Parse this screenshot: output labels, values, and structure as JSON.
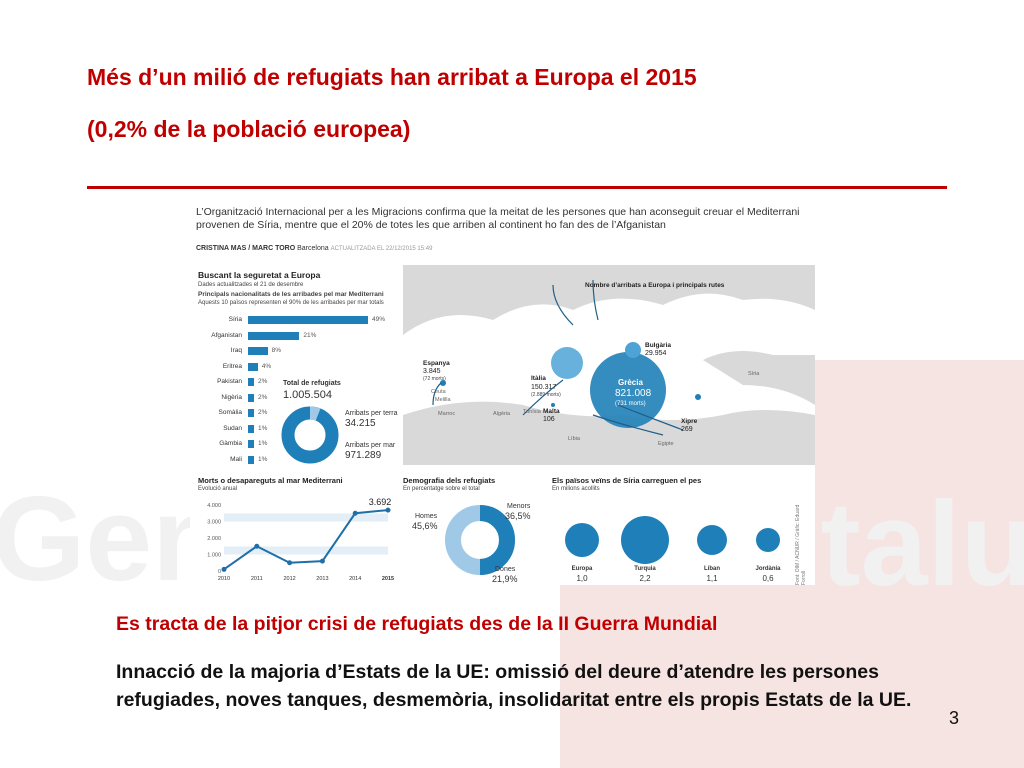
{
  "slide": {
    "title_line1": "Més d’un milió de refugiats han arribat a Europa el 2015",
    "title_line2": "(0,2% de la població europea)",
    "subtitle": "Es tracta de la pitjor crisi de refugiats des de la II Guerra Mundial",
    "paragraph": "Innacció de la majoria d’Estats de la UE: omissió del deure d’atendre les persones refugiades, noves tanques, desmemòria, insolidaritat entre els propis Estats de la UE.",
    "page_number": "3",
    "accent_color": "#c00000"
  },
  "infographic": {
    "headline": "L’Organització Internacional per a les Migracions confirma que la meitat de les persones que han aconseguit creuar el Mediterrani provenen de Síria, mentre que el 20% de totes les que arriben al continent ho fan des de l’Afganistan",
    "byline_authors": "CRISTINA MAS / MARC TORO",
    "byline_place": "Barcelona",
    "byline_updated": "ACTUALITZADA EL 22/12/2015 15:49",
    "section1_title": "Buscant la seguretat a Europa",
    "section1_note": "Dades actualitzades el 21 de desembre",
    "section1_subtitle": "Principals nacionalitats de les arribades pel mar Mediterrani",
    "section1_subnote": "Aquests 10 països representen el 90% de les arribades per mar totals",
    "nationalities": [
      {
        "name": "Síria",
        "pct": 49,
        "label": "49%"
      },
      {
        "name": "Afganistan",
        "pct": 21,
        "label": "21%"
      },
      {
        "name": "Iraq",
        "pct": 8,
        "label": "8%"
      },
      {
        "name": "Eritrea",
        "pct": 4,
        "label": "4%"
      },
      {
        "name": "Pakistan",
        "pct": 2,
        "label": "2%"
      },
      {
        "name": "Nigèria",
        "pct": 2,
        "label": "2%"
      },
      {
        "name": "Somàlia",
        "pct": 2,
        "label": "2%"
      },
      {
        "name": "Sudan",
        "pct": 1,
        "label": "1%"
      },
      {
        "name": "Gàmbia",
        "pct": 1,
        "label": "1%"
      },
      {
        "name": "Mali",
        "pct": 1,
        "label": "1%"
      }
    ],
    "total_label": "Total de refugiats",
    "total_value": "1.005.504",
    "land_label": "Arribats per terra",
    "land_value": "34.215",
    "sea_label": "Arribats per mar",
    "sea_value": "971.289",
    "land_share": 0.034,
    "map": {
      "legend": "Nombre d’arribats a Europa i principals rutes",
      "greece_name": "Grècia",
      "greece_value": "821.008",
      "greece_deaths": "(731 morts)",
      "italy_name": "Itàlia",
      "italy_value": "150.317",
      "italy_deaths": "(2.889 morts)",
      "spain_name": "Espanya",
      "spain_value": "3.845",
      "spain_deaths": "(72 morts)",
      "malta_name": "Malta",
      "malta_value": "106",
      "bulgaria_name": "Bulgària",
      "bulgaria_value": "29.954",
      "cyprus_name": "Xipre",
      "cyprus_value": "269",
      "places": [
        "Ceuta",
        "Melilla",
        "Marroc",
        "Algèria",
        "Tunísia",
        "Líbia",
        "Egipte",
        "Síria"
      ]
    },
    "deaths_chart": {
      "title": "Morts o desapareguts al mar Mediterrani",
      "subtitle": "Evolució anual",
      "highlight": "3.692"
    },
    "demography": {
      "title": "Demografia dels refugiats",
      "subtitle": "En percentatge sobre el total",
      "men_label": "Homes",
      "men_value": "45,6%",
      "minors_label": "Menors",
      "minors_value": "36,5%",
      "women_label": "Dones",
      "women_value": "21,9%"
    },
    "neighbours": {
      "title": "Els països veïns de Síria carreguen el pes",
      "subtitle": "En milions acollits",
      "countries": [
        {
          "name": "Europa",
          "value": "1,0"
        },
        {
          "name": "Turquia",
          "value": "2,2"
        },
        {
          "name": "Líban",
          "value": "1,1"
        },
        {
          "name": "Jordània",
          "value": "0,6"
        }
      ],
      "source": "Font: OIM / ACNUR / Gràfic: Eduard Forroll"
    }
  },
  "chart_data": {
    "type": "line",
    "title": "Morts o desapareguts al mar Mediterrani",
    "subtitle": "Evolució anual",
    "x": [
      "2010",
      "2011",
      "2012",
      "2013",
      "2014",
      "2015"
    ],
    "values": [
      100,
      1500,
      500,
      600,
      3500,
      3692
    ],
    "yticks": [
      "0",
      "1.000",
      "2.000",
      "3.000",
      "4.000"
    ],
    "ylim": [
      0,
      4000
    ],
    "highlight_label": "3.692"
  }
}
